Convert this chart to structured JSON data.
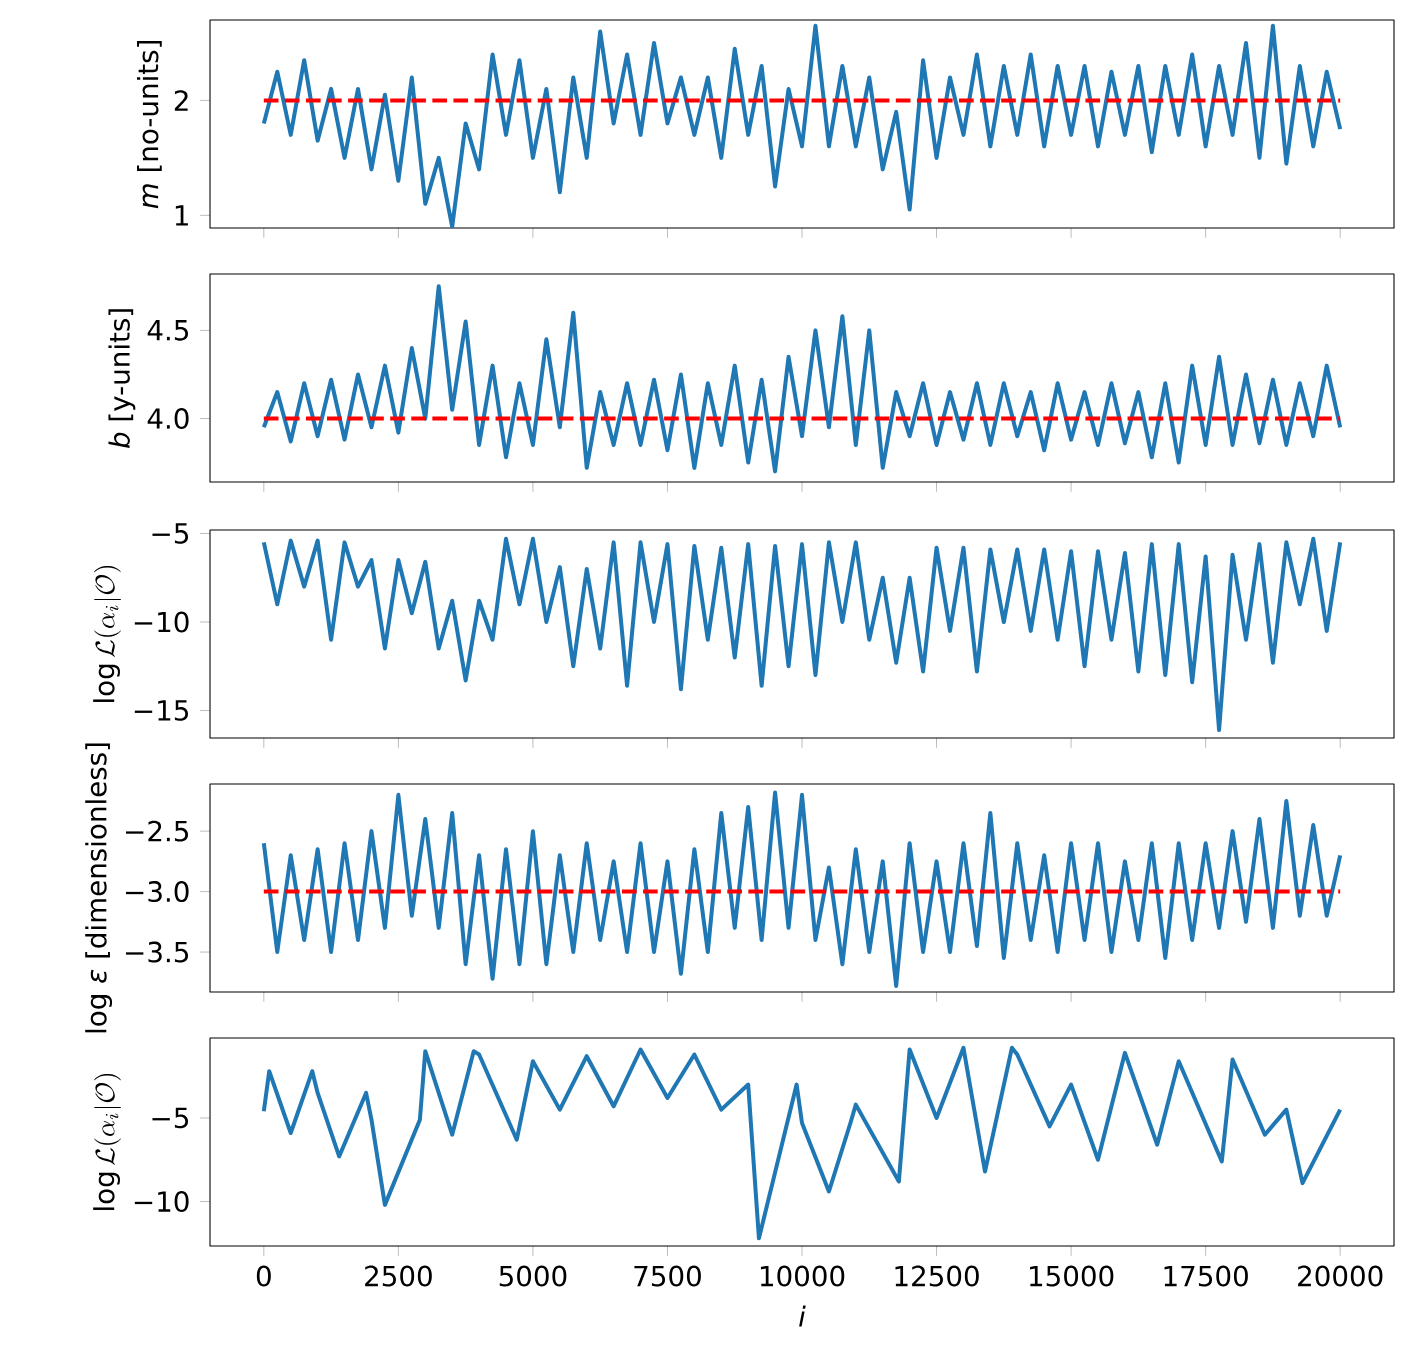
{
  "chart_data": [
    {
      "type": "line",
      "ylabel": "*m* [no-units]",
      "xlim": [
        -1000,
        21000
      ],
      "xticks": [
        0,
        2500,
        5000,
        7500,
        10000,
        12500,
        15000,
        17500,
        20000
      ],
      "ylim": [
        0.89,
        2.7
      ],
      "yticks": [
        1,
        2
      ],
      "tick_labels": "y",
      "x": [
        0,
        250,
        500,
        750,
        1000,
        1250,
        1500,
        1750,
        2000,
        2250,
        2500,
        2750,
        3000,
        3250,
        3500,
        3750,
        4000,
        4250,
        4500,
        4750,
        5000,
        5250,
        5500,
        5750,
        6000,
        6250,
        6500,
        6750,
        7000,
        7250,
        7500,
        7750,
        8000,
        8250,
        8500,
        8750,
        9000,
        9250,
        9500,
        9750,
        10000,
        10250,
        10500,
        10750,
        11000,
        11250,
        11500,
        11750,
        12000,
        12250,
        12500,
        12750,
        13000,
        13250,
        13500,
        13750,
        14000,
        14250,
        14500,
        14750,
        15000,
        15250,
        15500,
        15750,
        16000,
        16250,
        16500,
        16750,
        17000,
        17250,
        17500,
        17750,
        18000,
        18250,
        18500,
        18750,
        19000,
        19250,
        19500,
        19750,
        20000
      ],
      "series": [
        {
          "color": "#1f77b4",
          "values": [
            1.8,
            2.25,
            1.7,
            2.35,
            1.65,
            2.1,
            1.5,
            2.1,
            1.4,
            2.05,
            1.3,
            2.2,
            1.1,
            1.5,
            0.9,
            1.8,
            1.4,
            2.4,
            1.7,
            2.35,
            1.5,
            2.1,
            1.2,
            2.2,
            1.5,
            2.6,
            1.8,
            2.4,
            1.7,
            2.5,
            1.8,
            2.2,
            1.7,
            2.2,
            1.5,
            2.45,
            1.7,
            2.3,
            1.25,
            2.1,
            1.6,
            2.65,
            1.6,
            2.3,
            1.6,
            2.2,
            1.4,
            1.9,
            1.05,
            2.35,
            1.5,
            2.2,
            1.7,
            2.4,
            1.6,
            2.3,
            1.7,
            2.4,
            1.6,
            2.3,
            1.7,
            2.3,
            1.6,
            2.25,
            1.7,
            2.3,
            1.55,
            2.3,
            1.7,
            2.4,
            1.6,
            2.3,
            1.7,
            2.5,
            1.5,
            2.65,
            1.45,
            2.3,
            1.6,
            2.25,
            1.75
          ]
        }
      ],
      "ref_lines": [
        {
          "axis": "y",
          "value": 2,
          "color": "#ff0000",
          "line_style": "dashed"
        }
      ]
    },
    {
      "type": "line",
      "ylabel": "*b* [y-units]",
      "xlim": [
        -1000,
        21000
      ],
      "xticks": [
        0,
        2500,
        5000,
        7500,
        10000,
        12500,
        15000,
        17500,
        20000
      ],
      "ylim": [
        3.64,
        4.82
      ],
      "yticks": [
        {
          "value": 4.0,
          "label": "4.0"
        },
        {
          "value": 4.5,
          "label": "4.5"
        }
      ],
      "tick_labels": "y",
      "x": [
        0,
        250,
        500,
        750,
        1000,
        1250,
        1500,
        1750,
        2000,
        2250,
        2500,
        2750,
        3000,
        3250,
        3500,
        3750,
        4000,
        4250,
        4500,
        4750,
        5000,
        5250,
        5500,
        5750,
        6000,
        6250,
        6500,
        6750,
        7000,
        7250,
        7500,
        7750,
        8000,
        8250,
        8500,
        8750,
        9000,
        9250,
        9500,
        9750,
        10000,
        10250,
        10500,
        10750,
        11000,
        11250,
        11500,
        11750,
        12000,
        12250,
        12500,
        12750,
        13000,
        13250,
        13500,
        13750,
        14000,
        14250,
        14500,
        14750,
        15000,
        15250,
        15500,
        15750,
        16000,
        16250,
        16500,
        16750,
        17000,
        17250,
        17500,
        17750,
        18000,
        18250,
        18500,
        18750,
        19000,
        19250,
        19500,
        19750,
        20000
      ],
      "series": [
        {
          "color": "#1f77b4",
          "values": [
            3.95,
            4.15,
            3.87,
            4.2,
            3.9,
            4.22,
            3.88,
            4.25,
            3.95,
            4.3,
            3.92,
            4.4,
            4.0,
            4.75,
            4.05,
            4.55,
            3.85,
            4.3,
            3.78,
            4.2,
            3.85,
            4.45,
            3.95,
            4.6,
            3.72,
            4.15,
            3.85,
            4.2,
            3.85,
            4.22,
            3.82,
            4.25,
            3.72,
            4.2,
            3.85,
            4.3,
            3.75,
            4.22,
            3.7,
            4.35,
            3.9,
            4.5,
            3.95,
            4.58,
            3.85,
            4.5,
            3.72,
            4.15,
            3.9,
            4.2,
            3.85,
            4.15,
            3.88,
            4.2,
            3.85,
            4.2,
            3.9,
            4.15,
            3.82,
            4.2,
            3.88,
            4.15,
            3.85,
            4.2,
            3.86,
            4.15,
            3.78,
            4.2,
            3.75,
            4.3,
            3.85,
            4.35,
            3.85,
            4.25,
            3.86,
            4.22,
            3.85,
            4.2,
            3.9,
            4.3,
            3.95
          ]
        }
      ],
      "ref_lines": [
        {
          "axis": "y",
          "value": 4.0,
          "color": "#ff0000",
          "line_style": "dashed"
        }
      ]
    },
    {
      "type": "line",
      "ylabel": "\\log\\mathcal{L}(\\alpha_i|\\mathcal{O})",
      "xlim": [
        -1000,
        21000
      ],
      "xticks": [
        0,
        2500,
        5000,
        7500,
        10000,
        12500,
        15000,
        17500,
        20000
      ],
      "ylim": [
        -16.55,
        -4.8
      ],
      "yticks": [
        {
          "value": -15,
          "label": "−15"
        },
        {
          "value": -10,
          "label": "−10"
        },
        {
          "value": -5,
          "label": "−5"
        }
      ],
      "tick_labels": "y",
      "x": [
        0,
        250,
        500,
        750,
        1000,
        1250,
        1500,
        1750,
        2000,
        2250,
        2500,
        2750,
        3000,
        3250,
        3500,
        3750,
        4000,
        4250,
        4500,
        4750,
        5000,
        5250,
        5500,
        5750,
        6000,
        6250,
        6500,
        6750,
        7000,
        7250,
        7500,
        7750,
        8000,
        8250,
        8500,
        8750,
        9000,
        9250,
        9500,
        9750,
        10000,
        10250,
        10500,
        10750,
        11000,
        11250,
        11500,
        11750,
        12000,
        12250,
        12500,
        12750,
        13000,
        13250,
        13500,
        13750,
        14000,
        14250,
        14500,
        14750,
        15000,
        15250,
        15500,
        15750,
        16000,
        16250,
        16500,
        16750,
        17000,
        17250,
        17500,
        17750,
        18000,
        18250,
        18500,
        18750,
        19000,
        19250,
        19500,
        19750,
        20000
      ],
      "series": [
        {
          "color": "#1f77b4",
          "values": [
            -5.5,
            -9,
            -5.4,
            -8,
            -5.4,
            -11,
            -5.5,
            -8,
            -6.5,
            -11.5,
            -6.5,
            -9.5,
            -6.6,
            -11.5,
            -8.8,
            -13.3,
            -8.8,
            -11,
            -5.3,
            -9,
            -5.3,
            -10,
            -6.9,
            -12.5,
            -7,
            -11.5,
            -5.5,
            -13.6,
            -5.5,
            -10,
            -5.6,
            -13.8,
            -5.7,
            -11,
            -5.8,
            -12,
            -5.6,
            -13.6,
            -5.7,
            -12.5,
            -5.6,
            -13,
            -5.5,
            -10,
            -5.5,
            -11,
            -7.5,
            -12.3,
            -7.5,
            -12.8,
            -5.8,
            -10.5,
            -5.8,
            -12.8,
            -5.9,
            -10,
            -5.9,
            -10.5,
            -5.9,
            -11,
            -6,
            -12.5,
            -6,
            -11,
            -6.1,
            -12.8,
            -5.6,
            -13,
            -5.6,
            -13.4,
            -6.3,
            -16.1,
            -6.2,
            -11,
            -5.6,
            -12.3,
            -5.5,
            -9,
            -5.3,
            -10.5,
            -5.5
          ]
        }
      ]
    },
    {
      "type": "line",
      "ylabel": "log *ε* [dimensionless]",
      "xlim": [
        -1000,
        21000
      ],
      "xticks": [
        0,
        2500,
        5000,
        7500,
        10000,
        12500,
        15000,
        17500,
        20000
      ],
      "ylim": [
        -3.83,
        -2.11
      ],
      "yticks": [
        {
          "value": -3.5,
          "label": "−3.5"
        },
        {
          "value": -3.0,
          "label": "−3.0"
        },
        {
          "value": -2.5,
          "label": "−2.5"
        }
      ],
      "tick_labels": "y",
      "x": [
        0,
        250,
        500,
        750,
        1000,
        1250,
        1500,
        1750,
        2000,
        2250,
        2500,
        2750,
        3000,
        3250,
        3500,
        3750,
        4000,
        4250,
        4500,
        4750,
        5000,
        5250,
        5500,
        5750,
        6000,
        6250,
        6500,
        6750,
        7000,
        7250,
        7500,
        7750,
        8000,
        8250,
        8500,
        8750,
        9000,
        9250,
        9500,
        9750,
        10000,
        10250,
        10500,
        10750,
        11000,
        11250,
        11500,
        11750,
        12000,
        12250,
        12500,
        12750,
        13000,
        13250,
        13500,
        13750,
        14000,
        14250,
        14500,
        14750,
        15000,
        15250,
        15500,
        15750,
        16000,
        16250,
        16500,
        16750,
        17000,
        17250,
        17500,
        17750,
        18000,
        18250,
        18500,
        18750,
        19000,
        19250,
        19500,
        19750,
        20000
      ],
      "series": [
        {
          "color": "#1f77b4",
          "values": [
            -2.6,
            -3.5,
            -2.7,
            -3.4,
            -2.65,
            -3.5,
            -2.6,
            -3.4,
            -2.5,
            -3.3,
            -2.2,
            -3.2,
            -2.4,
            -3.3,
            -2.35,
            -3.6,
            -2.7,
            -3.72,
            -2.65,
            -3.6,
            -2.5,
            -3.6,
            -2.7,
            -3.5,
            -2.6,
            -3.4,
            -2.75,
            -3.5,
            -2.6,
            -3.5,
            -2.75,
            -3.68,
            -2.65,
            -3.5,
            -2.35,
            -3.3,
            -2.3,
            -3.4,
            -2.18,
            -3.3,
            -2.2,
            -3.4,
            -2.8,
            -3.6,
            -2.65,
            -3.5,
            -2.75,
            -3.78,
            -2.6,
            -3.5,
            -2.75,
            -3.5,
            -2.6,
            -3.45,
            -2.35,
            -3.55,
            -2.6,
            -3.4,
            -2.7,
            -3.5,
            -2.6,
            -3.4,
            -2.6,
            -3.5,
            -2.75,
            -3.4,
            -2.6,
            -3.55,
            -2.6,
            -3.4,
            -2.6,
            -3.3,
            -2.5,
            -3.25,
            -2.4,
            -3.3,
            -2.25,
            -3.2,
            -2.45,
            -3.2,
            -2.7
          ]
        }
      ],
      "ref_lines": [
        {
          "axis": "y",
          "value": -3.0,
          "color": "#ff0000",
          "line_style": "dashed"
        }
      ]
    },
    {
      "type": "line",
      "xlabel": "*i*",
      "ylabel": "\\log\\mathcal{L}(\\alpha_i|\\mathcal{O})",
      "xlim": [
        -1000,
        21000
      ],
      "xticks": [
        0,
        2500,
        5000,
        7500,
        10000,
        12500,
        15000,
        17500,
        20000
      ],
      "ylim": [
        -12.66,
        -0.21
      ],
      "yticks": [
        {
          "value": -10,
          "label": "−10"
        },
        {
          "value": -5,
          "label": "−5"
        }
      ],
      "x": [
        0,
        100,
        500,
        900,
        1000,
        1400,
        1900,
        2000,
        2250,
        2900,
        3000,
        3500,
        3900,
        4000,
        4700,
        5000,
        5500,
        6000,
        6500,
        7000,
        7500,
        8000,
        8500,
        9000,
        9200,
        9900,
        10000,
        10500,
        10900,
        11000,
        11800,
        12000,
        12500,
        13000,
        13400,
        13900,
        14000,
        14600,
        15000,
        15500,
        16000,
        16600,
        17000,
        17800,
        18000,
        18600,
        19000,
        19300,
        20000
      ],
      "series": [
        {
          "color": "#1f77b4",
          "values": [
            -4.6,
            -2.2,
            -5.9,
            -2.2,
            -3.5,
            -7.3,
            -3.5,
            -5.1,
            -10.2,
            -5.1,
            -1.0,
            -6.0,
            -1.0,
            -1.2,
            -6.3,
            -1.6,
            -4.5,
            -1.3,
            -4.3,
            -0.9,
            -3.8,
            -1.2,
            -4.5,
            -3.0,
            -12.2,
            -3.0,
            -5.3,
            -9.4,
            -5.3,
            -4.2,
            -8.8,
            -0.9,
            -5.0,
            -0.8,
            -8.2,
            -0.8,
            -1.2,
            -5.5,
            -3.0,
            -7.5,
            -1.1,
            -6.6,
            -1.6,
            -7.6,
            -1.5,
            -6.0,
            -4.5,
            -8.9,
            -4.5
          ]
        }
      ]
    }
  ]
}
